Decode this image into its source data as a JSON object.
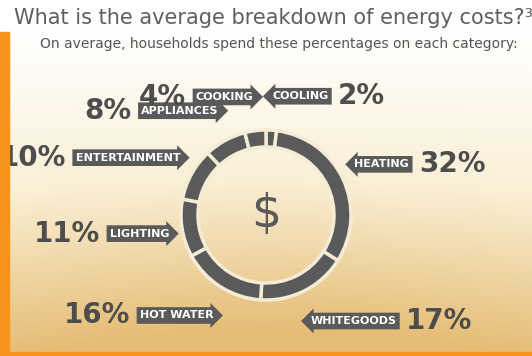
{
  "chart_data": {
    "type": "donut",
    "title": "What is the average breakdown of energy costs?³",
    "subtitle": "On average, households spend these percentages on each category:",
    "center_label": "$",
    "categories": [
      "COOLING",
      "HEATING",
      "WHITEGOODS",
      "HOT WATER",
      "LIGHTING",
      "ENTERTAINMENT",
      "APPLIANCES",
      "COOKING"
    ],
    "values": [
      2,
      32,
      17,
      16,
      11,
      10,
      8,
      4
    ],
    "value_labels": [
      "2%",
      "32%",
      "17%",
      "16%",
      "11%",
      "10%",
      "8%",
      "4%"
    ],
    "data_labels": true,
    "color": "#5a5a5a"
  }
}
